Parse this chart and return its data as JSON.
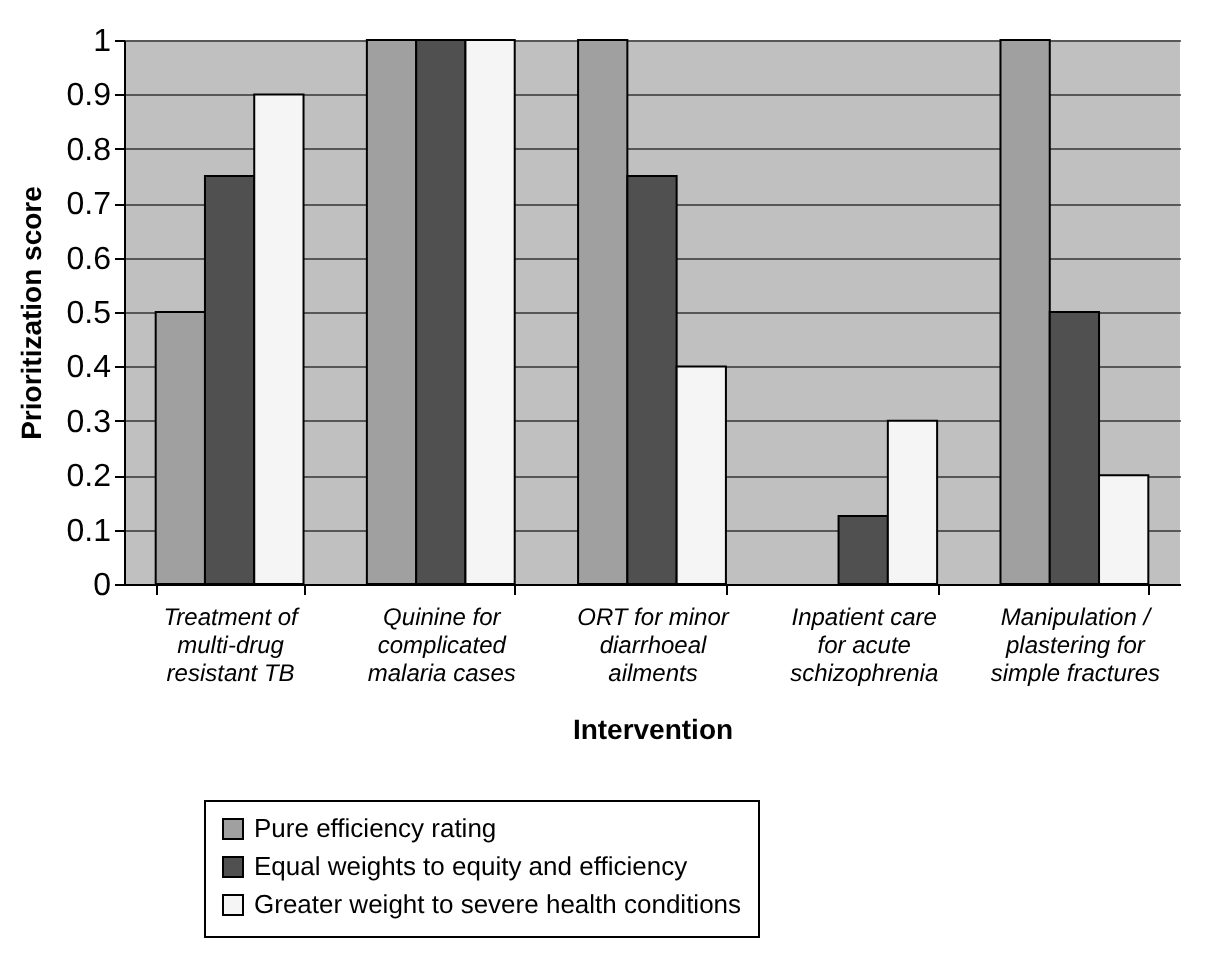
{
  "chart_data": {
    "type": "bar",
    "xlabel": "Intervention",
    "ylabel": "Prioritization score",
    "categories": [
      "Treatment of multi-drug resistant TB",
      "Quinine for complicated malaria cases",
      "ORT for minor diarrhoeal ailments",
      "Inpatient care for acute schizophrenia",
      "Manipulation / plastering for simple fractures"
    ],
    "series": [
      {
        "name": "Pure efficiency rating",
        "color": "#a0a0a0",
        "values": [
          0.5,
          1,
          1,
          null,
          1
        ]
      },
      {
        "name": "Equal weights to equity and efficiency",
        "color": "#505050",
        "values": [
          0.75,
          1,
          0.75,
          0.125,
          0.5
        ]
      },
      {
        "name": "Greater weight to severe health conditions",
        "color": "#f5f5f5",
        "values": [
          0.9,
          1,
          0.4,
          0.3,
          0.2
        ]
      }
    ],
    "ylim": [
      0,
      1
    ],
    "yticks": [
      0,
      0.1,
      0.2,
      0.3,
      0.4,
      0.5,
      0.6,
      0.7,
      0.8,
      0.9,
      1
    ],
    "grid": "y",
    "legend": "bottom"
  }
}
